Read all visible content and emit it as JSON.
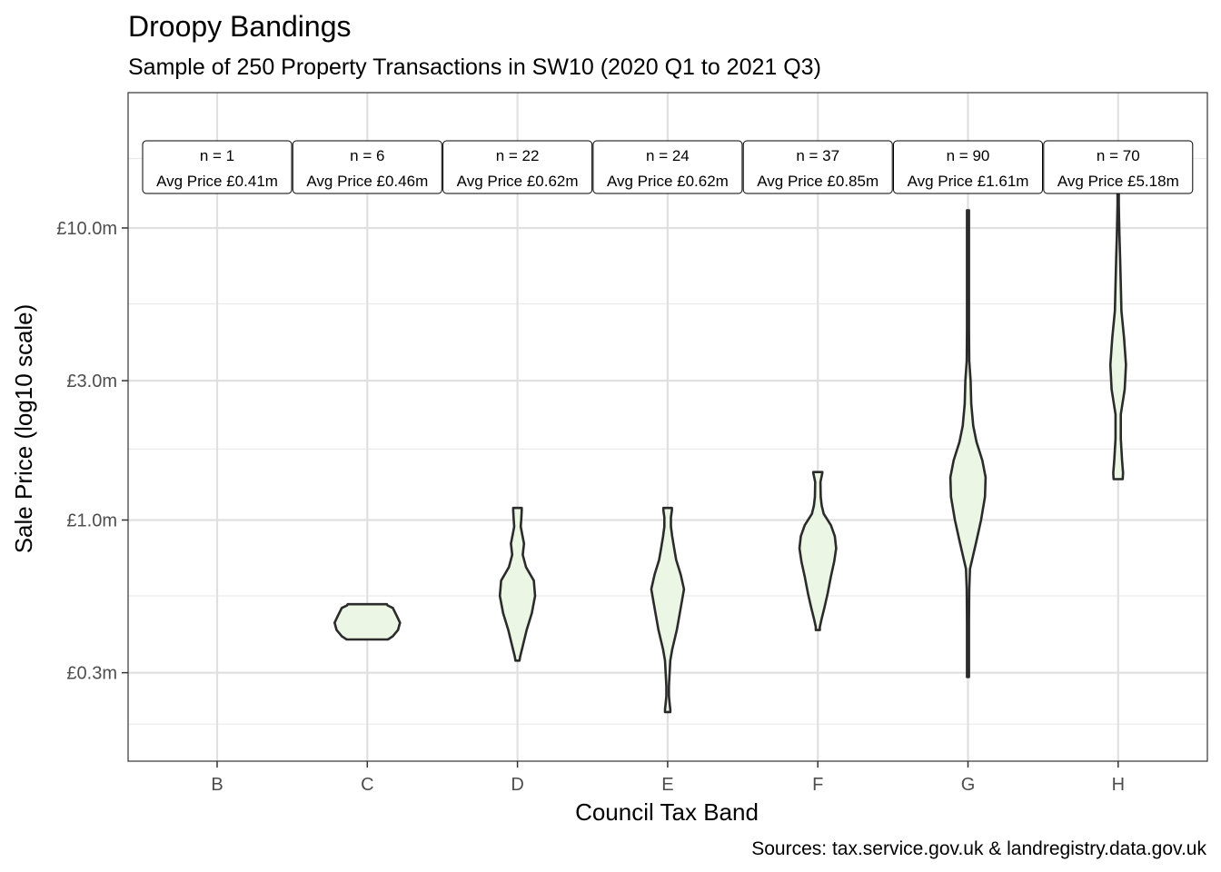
{
  "chart_data": {
    "type": "violin",
    "title": "Droopy Bandings",
    "subtitle": "Sample of 250 Property Transactions in SW10 (2020 Q1 to 2021 Q3)",
    "xlabel": "Council Tax Band",
    "ylabel": "Sale Price (log10 scale)",
    "caption": "Sources: tax.service.gov.uk & landregistry.data.gov.uk",
    "y_scale": "log10",
    "y_unit": "£m",
    "ylim": [
      0.2,
      20
    ],
    "y_ticks": [
      {
        "value": 0.3,
        "label": "£0.3m"
      },
      {
        "value": 1.0,
        "label": "£1.0m"
      },
      {
        "value": 3.0,
        "label": "£3.0m"
      },
      {
        "value": 10.0,
        "label": "£10.0m"
      }
    ],
    "y_minor_gridlines": [
      0.2,
      0.55,
      1.75,
      5.5,
      17.3
    ],
    "categories": [
      "B",
      "C",
      "D",
      "E",
      "F",
      "G",
      "H"
    ],
    "grid": true,
    "violin_fill": "#EBF6E4",
    "violin_stroke": "#2b2b2b",
    "groups": [
      {
        "band": "B",
        "n_label": "n = 1",
        "avg_label": "Avg Price £0.41m",
        "n": 1,
        "avg_price_m": 0.41,
        "profile": []
      },
      {
        "band": "C",
        "n_label": "n = 6",
        "avg_label": "Avg Price £0.46m",
        "n": 6,
        "avg_price_m": 0.46,
        "profile": [
          [
            0.39,
            0.315
          ],
          [
            0.4,
            0.39
          ],
          [
            0.42,
            0.47
          ],
          [
            0.445,
            0.5
          ],
          [
            0.47,
            0.45
          ],
          [
            0.5,
            0.39
          ],
          [
            0.51,
            0.31
          ],
          [
            0.515,
            0.3
          ]
        ]
      },
      {
        "band": "D",
        "n_label": "n = 22",
        "avg_label": "Avg Price £0.62m",
        "n": 22,
        "avg_price_m": 0.62,
        "profile": [
          [
            0.33,
            0.03
          ],
          [
            0.34,
            0.04
          ],
          [
            0.37,
            0.08
          ],
          [
            0.42,
            0.14
          ],
          [
            0.48,
            0.22
          ],
          [
            0.55,
            0.27
          ],
          [
            0.62,
            0.25
          ],
          [
            0.69,
            0.13
          ],
          [
            0.76,
            0.08
          ],
          [
            0.83,
            0.1
          ],
          [
            0.9,
            0.07
          ],
          [
            0.95,
            0.05
          ],
          [
            1.02,
            0.06
          ],
          [
            1.08,
            0.065
          ],
          [
            1.1,
            0.065
          ]
        ]
      },
      {
        "band": "E",
        "n_label": "n = 24",
        "avg_label": "Avg Price £0.62m",
        "n": 24,
        "avg_price_m": 0.62,
        "profile": [
          [
            0.22,
            0.04
          ],
          [
            0.225,
            0.04
          ],
          [
            0.235,
            0.03
          ],
          [
            0.25,
            0.02
          ],
          [
            0.27,
            0.02
          ],
          [
            0.3,
            0.03
          ],
          [
            0.33,
            0.04
          ],
          [
            0.36,
            0.07
          ],
          [
            0.42,
            0.14
          ],
          [
            0.5,
            0.2
          ],
          [
            0.58,
            0.25
          ],
          [
            0.65,
            0.2
          ],
          [
            0.73,
            0.13
          ],
          [
            0.8,
            0.1
          ],
          [
            0.88,
            0.07
          ],
          [
            0.95,
            0.05
          ],
          [
            1.02,
            0.05
          ],
          [
            1.08,
            0.065
          ],
          [
            1.1,
            0.065
          ]
        ]
      },
      {
        "band": "F",
        "n_label": "n = 37",
        "avg_label": "Avg Price £0.85m",
        "n": 37,
        "avg_price_m": 0.85,
        "profile": [
          [
            0.42,
            0.03
          ],
          [
            0.43,
            0.03
          ],
          [
            0.46,
            0.06
          ],
          [
            0.5,
            0.1
          ],
          [
            0.56,
            0.15
          ],
          [
            0.64,
            0.2
          ],
          [
            0.72,
            0.25
          ],
          [
            0.8,
            0.28
          ],
          [
            0.88,
            0.26
          ],
          [
            0.96,
            0.2
          ],
          [
            1.05,
            0.09
          ],
          [
            1.12,
            0.06
          ],
          [
            1.2,
            0.045
          ],
          [
            1.35,
            0.04
          ],
          [
            1.45,
            0.07
          ],
          [
            1.46,
            0.07
          ]
        ]
      },
      {
        "band": "G",
        "n_label": "n = 90",
        "avg_label": "Avg Price £1.61m",
        "n": 90,
        "avg_price_m": 1.61,
        "profile": [
          [
            0.29,
            0.015
          ],
          [
            0.35,
            0.015
          ],
          [
            0.45,
            0.015
          ],
          [
            0.58,
            0.02
          ],
          [
            0.68,
            0.03
          ],
          [
            0.76,
            0.08
          ],
          [
            0.85,
            0.13
          ],
          [
            1.0,
            0.2
          ],
          [
            1.2,
            0.26
          ],
          [
            1.4,
            0.27
          ],
          [
            1.6,
            0.22
          ],
          [
            1.85,
            0.13
          ],
          [
            2.1,
            0.08
          ],
          [
            2.5,
            0.05
          ],
          [
            3.0,
            0.04
          ],
          [
            3.5,
            0.02
          ],
          [
            4.5,
            0.015
          ],
          [
            6.0,
            0.015
          ],
          [
            8.5,
            0.015
          ],
          [
            11.5,
            0.015
          ]
        ]
      },
      {
        "band": "H",
        "n_label": "n = 70",
        "avg_label": "Avg Price £5.18m",
        "n": 70,
        "avg_price_m": 5.18,
        "profile": [
          [
            1.38,
            0.07
          ],
          [
            1.45,
            0.075
          ],
          [
            1.6,
            0.06
          ],
          [
            1.9,
            0.04
          ],
          [
            2.3,
            0.04
          ],
          [
            2.8,
            0.1
          ],
          [
            3.4,
            0.12
          ],
          [
            4.2,
            0.09
          ],
          [
            5.2,
            0.05
          ],
          [
            6.4,
            0.04
          ],
          [
            7.8,
            0.03
          ],
          [
            9.5,
            0.02
          ],
          [
            12.0,
            0.01
          ],
          [
            16.0,
            0.01
          ],
          [
            19.0,
            0.015
          ],
          [
            19.5,
            0.015
          ]
        ]
      }
    ]
  }
}
